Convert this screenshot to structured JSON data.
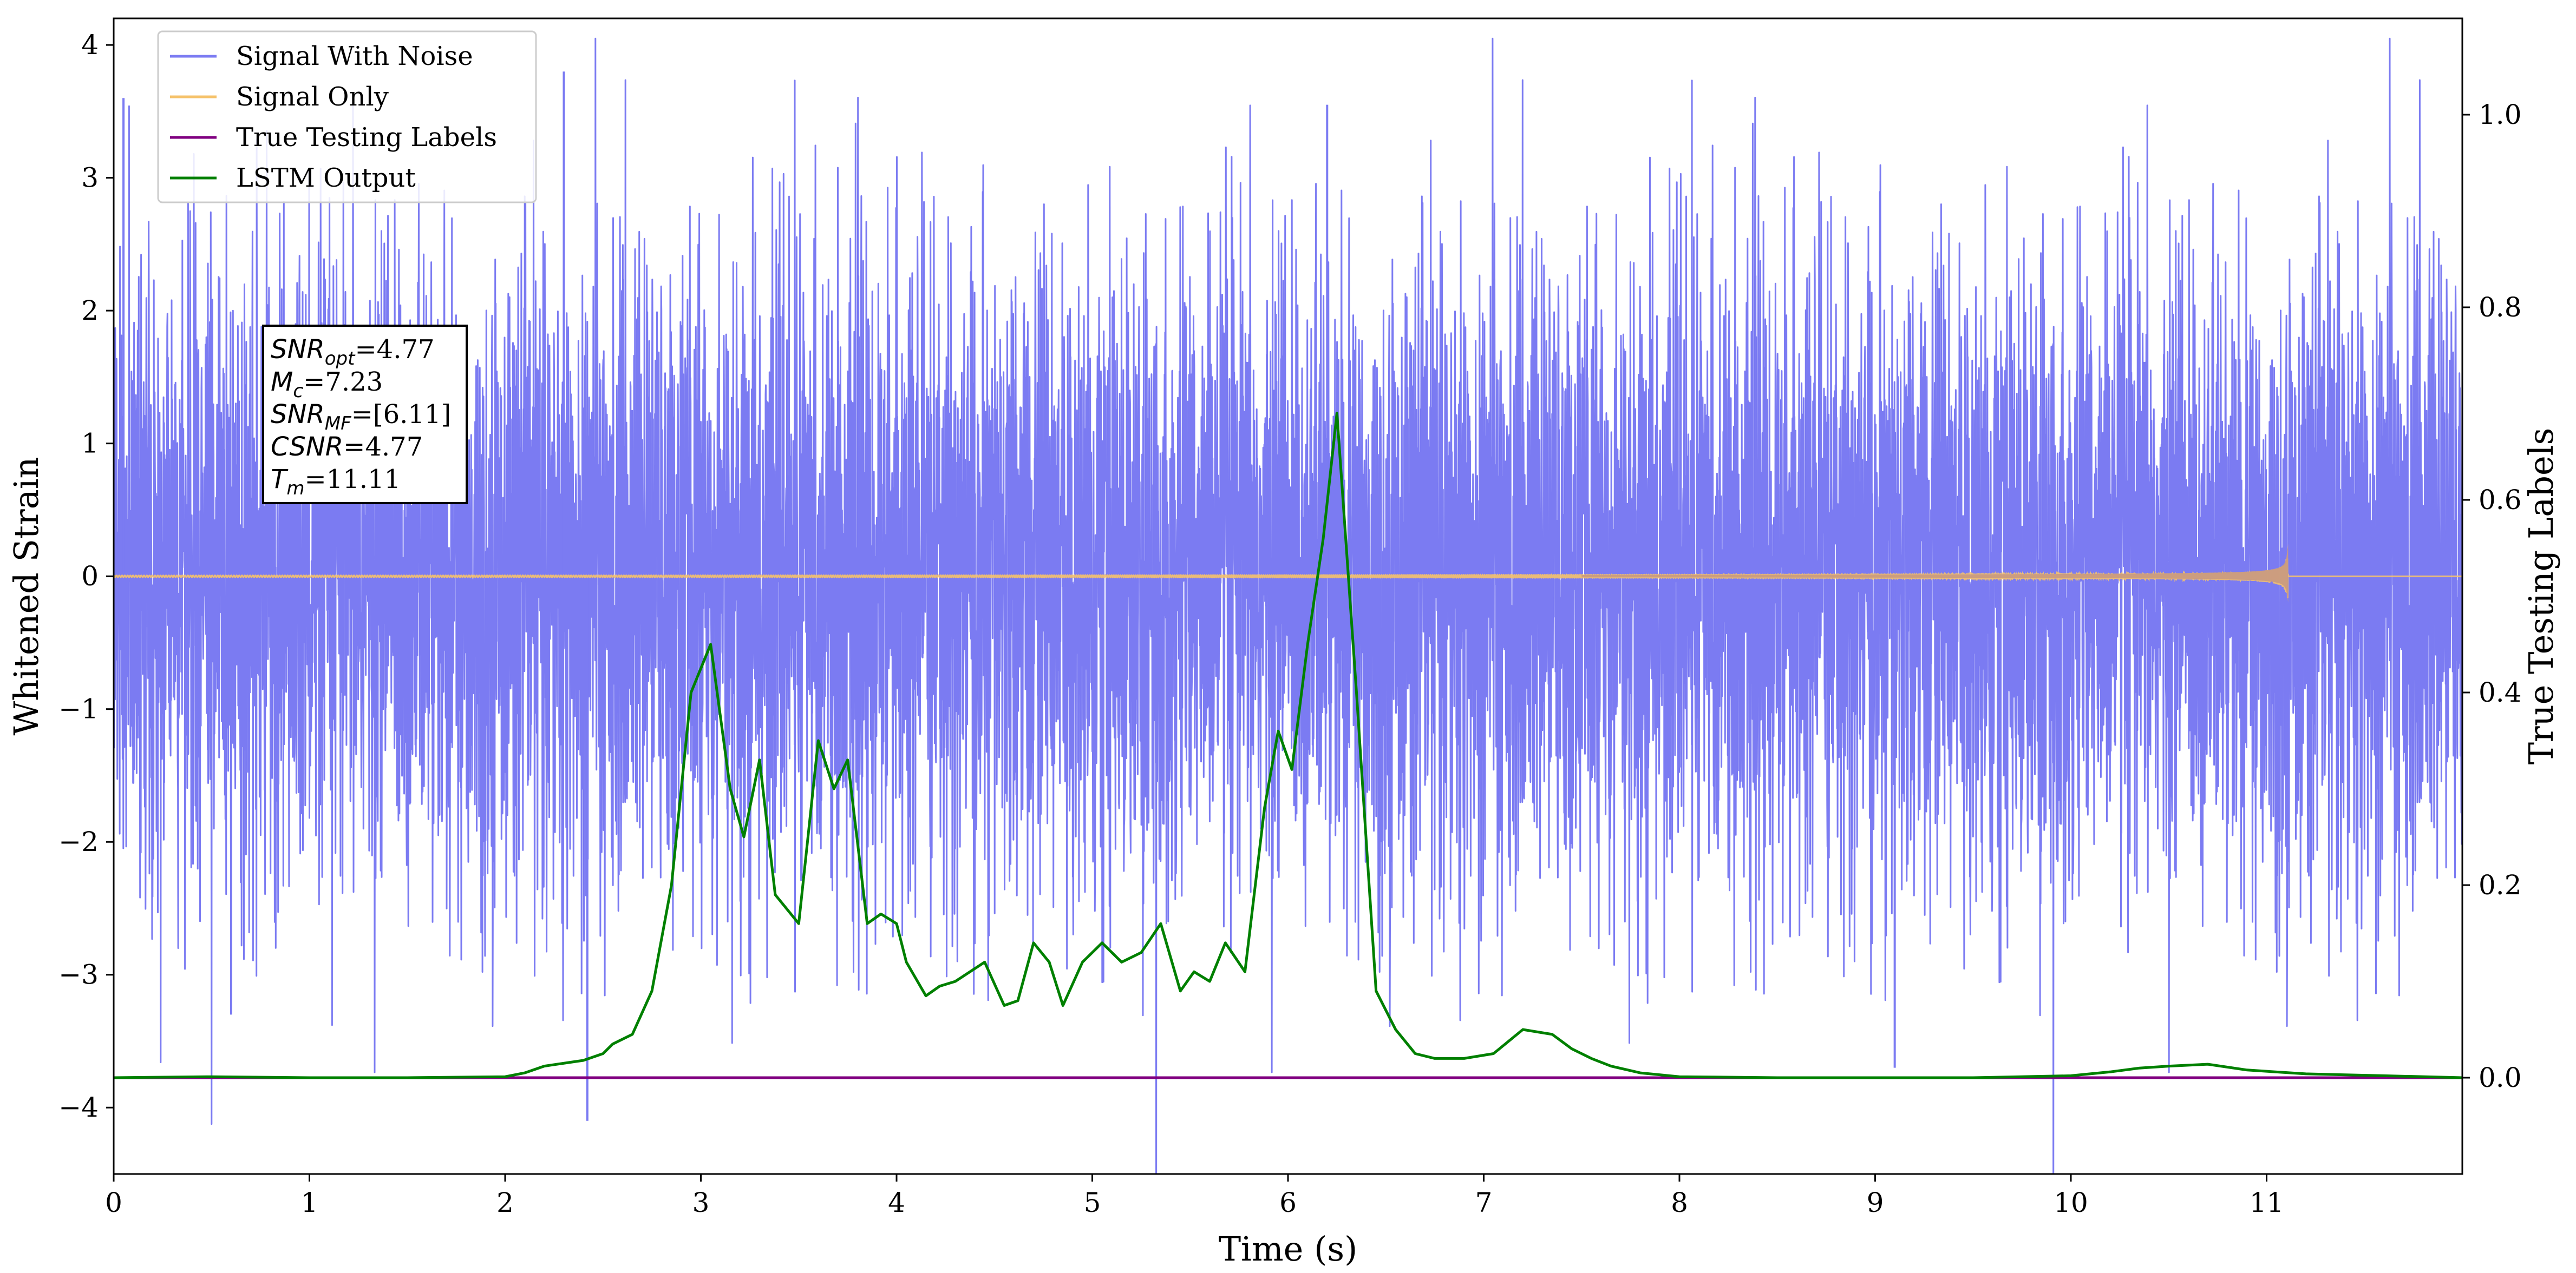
{
  "chart_data": {
    "type": "line",
    "xlabel": "Time (s)",
    "ylabel": "Whitened Strain",
    "ylabel_right": "True Testing Labels",
    "xlim": [
      0,
      12
    ],
    "ylim": [
      -4.5,
      4.2
    ],
    "ylim_right": [
      -0.1,
      1.1
    ],
    "x_ticks": [
      0,
      1,
      2,
      3,
      4,
      5,
      6,
      7,
      8,
      9,
      10,
      11
    ],
    "y_ticks": [
      -4,
      -3,
      -2,
      -1,
      0,
      1,
      2,
      3,
      4
    ],
    "y_ticks_right": [
      "0.0",
      "0.2",
      "0.4",
      "0.6",
      "0.8",
      "1.0"
    ],
    "grid": false,
    "legend_position": "top-left",
    "series": [
      {
        "name": "Signal With Noise",
        "color": "#7b7bf2",
        "axis": "left",
        "style": "noise band",
        "typical_range": [
          -1.9,
          2.2
        ],
        "spike_examples": [
          {
            "x": 0.05,
            "y": 3.6
          },
          {
            "x": 2.3,
            "y": 3.8
          },
          {
            "x": 6.2,
            "y": 3.55
          },
          {
            "x": 2.42,
            "y": -4.1
          },
          {
            "x": 9.1,
            "y": -3.7
          },
          {
            "x": 0.6,
            "y": -3.3
          }
        ]
      },
      {
        "name": "Signal Only",
        "color": "#f5c26b",
        "axis": "left",
        "style": "chirp",
        "merger_time": 11.11,
        "peak_amplitude": 0.62
      },
      {
        "name": "True Testing  Labels",
        "color": "#800080",
        "axis": "right",
        "x": [
          0,
          12
        ],
        "y": [
          0,
          0
        ]
      },
      {
        "name": "LSTM Output",
        "color": "#008000",
        "axis": "right",
        "x": [
          0,
          0.5,
          1.0,
          1.5,
          2.0,
          2.1,
          2.2,
          2.4,
          2.5,
          2.55,
          2.65,
          2.75,
          2.85,
          2.95,
          3.05,
          3.15,
          3.22,
          3.3,
          3.38,
          3.5,
          3.6,
          3.68,
          3.75,
          3.85,
          3.92,
          4.0,
          4.05,
          4.15,
          4.22,
          4.3,
          4.45,
          4.55,
          4.62,
          4.7,
          4.78,
          4.85,
          4.95,
          5.05,
          5.15,
          5.25,
          5.35,
          5.45,
          5.52,
          5.6,
          5.68,
          5.78,
          5.88,
          5.95,
          6.02,
          6.1,
          6.18,
          6.25,
          6.35,
          6.45,
          6.55,
          6.65,
          6.75,
          6.9,
          7.05,
          7.2,
          7.35,
          7.45,
          7.55,
          7.65,
          7.8,
          8.0,
          8.5,
          9.0,
          9.5,
          10.0,
          10.2,
          10.35,
          10.5,
          10.7,
          10.9,
          11.2,
          11.6,
          12.0
        ],
        "y": [
          0.0,
          0.001,
          0.0,
          0.0,
          0.001,
          0.005,
          0.012,
          0.018,
          0.025,
          0.035,
          0.045,
          0.09,
          0.2,
          0.4,
          0.45,
          0.3,
          0.25,
          0.33,
          0.19,
          0.16,
          0.35,
          0.3,
          0.33,
          0.16,
          0.17,
          0.16,
          0.12,
          0.085,
          0.095,
          0.1,
          0.12,
          0.075,
          0.08,
          0.14,
          0.12,
          0.075,
          0.12,
          0.14,
          0.12,
          0.13,
          0.16,
          0.09,
          0.11,
          0.1,
          0.14,
          0.11,
          0.28,
          0.36,
          0.32,
          0.45,
          0.56,
          0.69,
          0.4,
          0.09,
          0.05,
          0.025,
          0.02,
          0.02,
          0.025,
          0.05,
          0.045,
          0.03,
          0.02,
          0.012,
          0.005,
          0.001,
          0.0,
          0.0,
          0.0,
          0.002,
          0.006,
          0.01,
          0.012,
          0.014,
          0.008,
          0.004,
          0.002,
          0.0
        ]
      }
    ],
    "annotation": {
      "lines": [
        {
          "sym": "SNR",
          "sub": "opt",
          "val": "=4.77"
        },
        {
          "sym": "M",
          "sub": "c",
          "val": "=7.23"
        },
        {
          "sym": "SNR",
          "sub": "MF",
          "val": "=[6.11]"
        },
        {
          "sym": "CSNR",
          "sub": "",
          "val": "=4.77"
        },
        {
          "sym": "T",
          "sub": "m",
          "val": "=11.11"
        }
      ]
    }
  }
}
